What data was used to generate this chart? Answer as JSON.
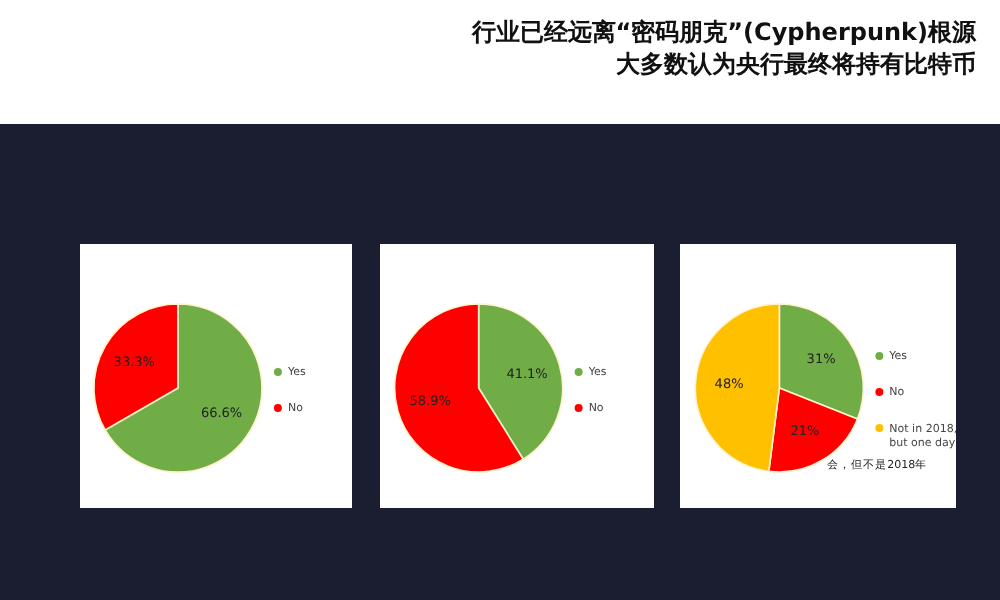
{
  "chart_data": [
    {
      "type": "pie",
      "categories": [
        "Yes",
        "No"
      ],
      "values": [
        66.6,
        33.3
      ],
      "value_labels": [
        "66.6%",
        "33.3%"
      ],
      "colors": [
        "#70ad47",
        "#ff0000"
      ],
      "legend": "right",
      "annotations": [
        "行业已经远离“密码朋克”(Cypherpunk)根源",
        "大多数认为央行最终将持有比特币"
      ]
    },
    {
      "type": "pie",
      "categories": [
        "Yes",
        "No"
      ],
      "values": [
        41.1,
        58.9
      ],
      "value_labels": [
        "41.1%",
        "58.9%"
      ],
      "colors": [
        "#70ad47",
        "#ff0000"
      ],
      "legend": "right"
    },
    {
      "type": "pie",
      "categories": [
        "Yes",
        "No",
        "Not in 2018, but one day"
      ],
      "values": [
        31,
        21,
        48
      ],
      "value_labels": [
        "31%",
        "21%",
        "48%"
      ],
      "colors": [
        "#70ad47",
        "#ff0000",
        "#ffc000"
      ],
      "legend": "right",
      "annotations": [
        "会，但不是2018年"
      ]
    }
  ]
}
